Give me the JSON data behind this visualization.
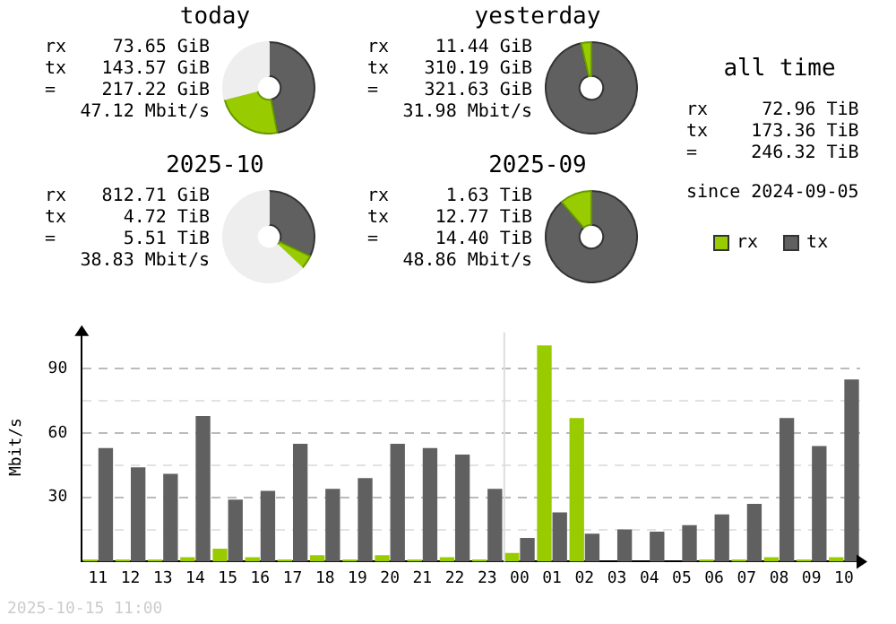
{
  "chart_data": [
    {
      "type": "donut",
      "title": "today",
      "categories": [
        null,
        null,
        null
      ],
      "values": [
        47,
        24,
        29
      ],
      "colors": [
        "#606060",
        "#99cc00",
        "#eeeeee"
      ],
      "annotations": [
        "rx",
        "73.65 GiB",
        "tx",
        "143.57 GiB",
        "=",
        "217.22 GiB",
        "47.12 Mbit/s"
      ]
    },
    {
      "type": "donut",
      "title": "yesterday",
      "categories": [
        null,
        null
      ],
      "values": [
        96.4,
        3.6
      ],
      "colors": [
        "#606060",
        "#99cc00"
      ],
      "annotations": [
        "rx",
        "11.44 GiB",
        "tx",
        "310.19 GiB",
        "=",
        "321.63 GiB",
        "31.98 Mbit/s"
      ]
    },
    {
      "type": "other",
      "title": "all time",
      "annotations": [
        "rx",
        "72.96 TiB",
        "tx",
        "173.36 TiB",
        "=",
        "246.32 TiB",
        "since 2024-09-05"
      ]
    },
    {
      "type": "donut",
      "title": "2025-10",
      "categories": [
        null,
        null,
        null
      ],
      "values": [
        32,
        5,
        63
      ],
      "colors": [
        "#606060",
        "#99cc00",
        "#eeeeee"
      ],
      "annotations": [
        "rx",
        "812.71 GiB",
        "tx",
        "4.72 TiB",
        "=",
        "5.51 TiB",
        "38.83 Mbit/s"
      ]
    },
    {
      "type": "donut",
      "title": "2025-09",
      "categories": [
        null,
        null
      ],
      "values": [
        88.7,
        11.3
      ],
      "colors": [
        "#606060",
        "#99cc00"
      ],
      "annotations": [
        "rx",
        "1.63 TiB",
        "tx",
        "12.77 TiB",
        "=",
        "14.40 TiB",
        "48.86 Mbit/s"
      ]
    },
    {
      "type": "bar",
      "ylabel": "Mbit/s",
      "legend": "top right",
      "grid": "y",
      "categories": [
        "11",
        "12",
        "13",
        "14",
        "15",
        "16",
        "17",
        "18",
        "19",
        "20",
        "21",
        "22",
        "23",
        "00",
        "01",
        "02",
        "03",
        "04",
        "05",
        "06",
        "07",
        "08",
        "09",
        "10"
      ],
      "series": [
        {
          "name": "rx",
          "color": "#99cc00",
          "values": [
            1,
            1,
            1,
            2,
            6,
            2,
            1,
            3,
            1,
            3,
            1,
            2,
            1,
            4,
            101,
            67,
            0,
            0,
            0,
            1,
            1,
            2,
            1,
            2
          ]
        },
        {
          "name": "tx",
          "color": "#606060",
          "values": [
            53,
            44,
            41,
            68,
            29,
            33,
            55,
            34,
            39,
            55,
            53,
            50,
            34,
            11,
            23,
            13,
            15,
            14,
            17,
            22,
            27,
            67,
            54,
            85
          ]
        }
      ],
      "ylim": [
        0,
        107
      ],
      "yticks": [
        {
          "value": 15,
          "label": null
        },
        30,
        {
          "value": 45,
          "label": null
        },
        60,
        {
          "value": 75,
          "label": null
        },
        90
      ],
      "ref_lines": [
        {
          "axis": "x",
          "value": "00",
          "color": "#dddddd"
        }
      ],
      "annotations": [
        "2025-10-15 11:00"
      ]
    }
  ]
}
